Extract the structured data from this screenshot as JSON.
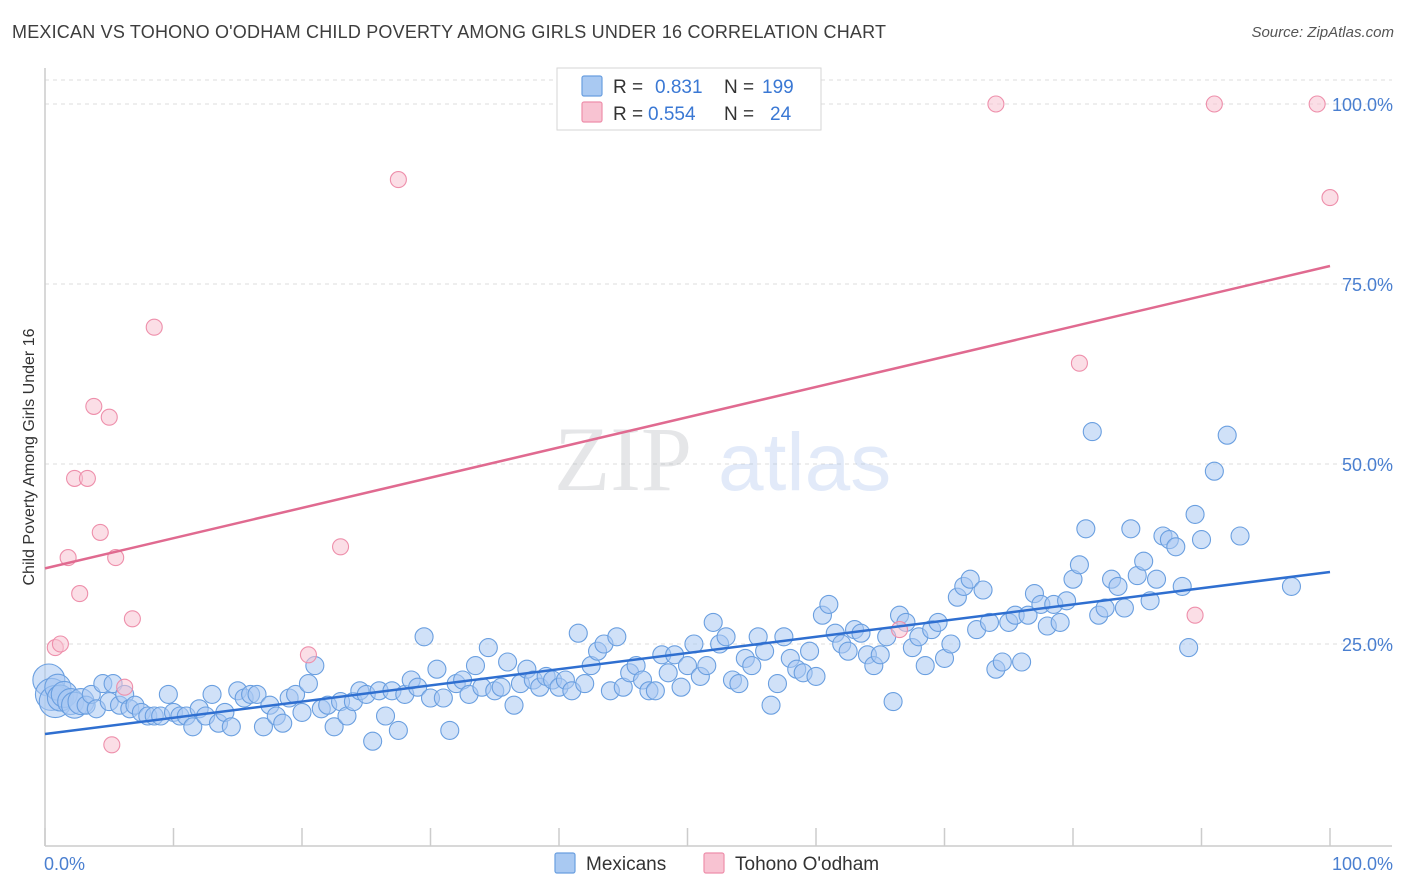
{
  "header": {
    "title": "MEXICAN VS TOHONO O'ODHAM CHILD POVERTY AMONG GIRLS UNDER 16 CORRELATION CHART",
    "source": "Source: ZipAtlas.com"
  },
  "legend": {
    "rows": [
      {
        "r_label": "R =",
        "r_value": "0.831",
        "n_label": "N =",
        "n_value": "199",
        "color": "#9ec3f0"
      },
      {
        "r_label": "R =",
        "r_value": "0.554",
        "n_label": "N =",
        "n_value": "24",
        "color": "#f5b8c8"
      }
    ]
  },
  "watermark": {
    "zip": "ZIP",
    "atlas": "atlas"
  },
  "colors": {
    "blue_fill": "#a9c9f2",
    "blue_stroke": "#6a9fe0",
    "blue_line": "#2f6fd0",
    "pink_fill": "#f8c3d2",
    "pink_stroke": "#ee8fab",
    "pink_line": "#e06a90",
    "grid": "#dddddd",
    "axis": "#cccccc"
  },
  "chart_data": {
    "type": "scatter",
    "title": "MEXICAN VS TOHONO O'ODHAM CHILD POVERTY AMONG GIRLS UNDER 16 CORRELATION CHART",
    "ylabel": "Child Poverty Among Girls Under 16",
    "xlabel": "",
    "xlim": [
      0,
      100
    ],
    "ylim": [
      0,
      105
    ],
    "x_tick_labels": [
      "0.0%",
      "100.0%"
    ],
    "y_ticks": [
      25,
      50,
      75,
      100
    ],
    "y_tick_labels": [
      "25.0%",
      "50.0%",
      "75.0%",
      "100.0%"
    ],
    "grid": "horizontal dashed",
    "legend_placement": "top-center",
    "series": [
      {
        "name": "Mexicans",
        "trend": {
          "x": [
            0,
            100
          ],
          "y": [
            12.5,
            35.0
          ]
        },
        "points": [
          [
            0.3,
            20
          ],
          [
            0.5,
            18
          ],
          [
            0.8,
            17
          ],
          [
            1,
            19
          ],
          [
            1.2,
            17.5
          ],
          [
            1.5,
            18
          ],
          [
            2,
            17
          ],
          [
            2.3,
            16.5
          ],
          [
            2.8,
            17
          ],
          [
            3.2,
            16.5
          ],
          [
            3.6,
            18
          ],
          [
            4,
            16
          ],
          [
            4.5,
            19.5
          ],
          [
            5,
            17
          ],
          [
            5.3,
            19.5
          ],
          [
            5.8,
            16.5
          ],
          [
            6.2,
            18
          ],
          [
            6.6,
            16
          ],
          [
            7,
            16.5
          ],
          [
            7.5,
            15.5
          ],
          [
            8,
            15
          ],
          [
            8.5,
            15
          ],
          [
            9,
            15
          ],
          [
            9.6,
            18
          ],
          [
            10,
            15.5
          ],
          [
            10.5,
            15
          ],
          [
            11,
            15
          ],
          [
            11.5,
            13.5
          ],
          [
            12,
            16
          ],
          [
            12.5,
            15
          ],
          [
            13,
            18
          ],
          [
            13.5,
            14
          ],
          [
            14,
            15.5
          ],
          [
            14.5,
            13.5
          ],
          [
            15,
            18.5
          ],
          [
            15.5,
            17.5
          ],
          [
            16,
            18
          ],
          [
            16.5,
            18
          ],
          [
            17,
            13.5
          ],
          [
            17.5,
            16.5
          ],
          [
            18,
            15
          ],
          [
            18.5,
            14
          ],
          [
            19,
            17.5
          ],
          [
            19.5,
            18
          ],
          [
            20,
            15.5
          ],
          [
            20.5,
            19.5
          ],
          [
            21,
            22
          ],
          [
            21.5,
            16
          ],
          [
            22,
            16.5
          ],
          [
            22.5,
            13.5
          ],
          [
            23,
            17
          ],
          [
            23.5,
            15
          ],
          [
            24,
            17
          ],
          [
            24.5,
            18.5
          ],
          [
            25,
            18
          ],
          [
            25.5,
            11.5
          ],
          [
            26,
            18.5
          ],
          [
            26.5,
            15
          ],
          [
            27,
            18.5
          ],
          [
            27.5,
            13
          ],
          [
            28,
            18
          ],
          [
            28.5,
            20
          ],
          [
            29,
            19
          ],
          [
            29.5,
            26
          ],
          [
            30,
            17.5
          ],
          [
            30.5,
            21.5
          ],
          [
            31,
            17.5
          ],
          [
            31.5,
            13
          ],
          [
            32,
            19.5
          ],
          [
            32.5,
            20
          ],
          [
            33,
            18
          ],
          [
            33.5,
            22
          ],
          [
            34,
            19
          ],
          [
            34.5,
            24.5
          ],
          [
            35,
            18.5
          ],
          [
            35.5,
            19
          ],
          [
            36,
            22.5
          ],
          [
            36.5,
            16.5
          ],
          [
            37,
            19.5
          ],
          [
            37.5,
            21.5
          ],
          [
            38,
            20
          ],
          [
            38.5,
            19
          ],
          [
            39,
            20.5
          ],
          [
            39.5,
            20
          ],
          [
            40,
            19
          ],
          [
            40.5,
            20
          ],
          [
            41,
            18.5
          ],
          [
            41.5,
            26.5
          ],
          [
            42,
            19.5
          ],
          [
            42.5,
            22
          ],
          [
            43,
            24
          ],
          [
            43.5,
            25
          ],
          [
            44,
            18.5
          ],
          [
            44.5,
            26
          ],
          [
            45,
            19
          ],
          [
            45.5,
            21
          ],
          [
            46,
            22
          ],
          [
            46.5,
            20
          ],
          [
            47,
            18.5
          ],
          [
            47.5,
            18.5
          ],
          [
            48,
            23.5
          ],
          [
            48.5,
            21
          ],
          [
            49,
            23.5
          ],
          [
            49.5,
            19
          ],
          [
            50,
            22
          ],
          [
            50.5,
            25
          ],
          [
            51,
            20.5
          ],
          [
            51.5,
            22
          ],
          [
            52,
            28
          ],
          [
            52.5,
            25
          ],
          [
            53,
            26
          ],
          [
            53.5,
            20
          ],
          [
            54,
            19.5
          ],
          [
            54.5,
            23
          ],
          [
            55,
            22
          ],
          [
            55.5,
            26
          ],
          [
            56,
            24
          ],
          [
            56.5,
            16.5
          ],
          [
            57,
            19.5
          ],
          [
            57.5,
            26
          ],
          [
            58,
            23
          ],
          [
            58.5,
            21.5
          ],
          [
            59,
            21
          ],
          [
            59.5,
            24
          ],
          [
            60,
            20.5
          ],
          [
            60.5,
            29
          ],
          [
            61,
            30.5
          ],
          [
            61.5,
            26.5
          ],
          [
            62,
            25
          ],
          [
            62.5,
            24
          ],
          [
            63,
            27
          ],
          [
            63.5,
            26.5
          ],
          [
            64,
            23.5
          ],
          [
            64.5,
            22
          ],
          [
            65,
            23.5
          ],
          [
            65.5,
            26
          ],
          [
            66,
            17
          ],
          [
            66.5,
            29
          ],
          [
            67,
            28
          ],
          [
            67.5,
            24.5
          ],
          [
            68,
            26
          ],
          [
            68.5,
            22
          ],
          [
            69,
            27
          ],
          [
            69.5,
            28
          ],
          [
            70,
            23
          ],
          [
            70.5,
            25
          ],
          [
            71,
            31.5
          ],
          [
            71.5,
            33
          ],
          [
            72,
            34
          ],
          [
            72.5,
            27
          ],
          [
            73,
            32.5
          ],
          [
            73.5,
            28
          ],
          [
            74,
            21.5
          ],
          [
            74.5,
            22.5
          ],
          [
            75,
            28
          ],
          [
            75.5,
            29
          ],
          [
            76,
            22.5
          ],
          [
            76.5,
            29
          ],
          [
            77,
            32
          ],
          [
            77.5,
            30.5
          ],
          [
            78,
            27.5
          ],
          [
            78.5,
            30.5
          ],
          [
            79,
            28
          ],
          [
            79.5,
            31
          ],
          [
            80,
            34
          ],
          [
            80.5,
            36
          ],
          [
            81,
            41
          ],
          [
            81.5,
            54.5
          ],
          [
            82,
            29
          ],
          [
            82.5,
            30
          ],
          [
            83,
            34
          ],
          [
            83.5,
            33
          ],
          [
            84,
            30
          ],
          [
            84.5,
            41
          ],
          [
            85,
            34.5
          ],
          [
            85.5,
            36.5
          ],
          [
            86,
            31
          ],
          [
            86.5,
            34
          ],
          [
            87,
            40
          ],
          [
            87.5,
            39.5
          ],
          [
            88,
            38.5
          ],
          [
            88.5,
            33
          ],
          [
            89,
            24.5
          ],
          [
            89.5,
            43
          ],
          [
            90,
            39.5
          ],
          [
            91,
            49
          ],
          [
            92,
            54
          ],
          [
            93,
            40
          ],
          [
            97,
            33
          ]
        ]
      },
      {
        "name": "Tohono O'odham",
        "trend": {
          "x": [
            0,
            100
          ],
          "y": [
            35.5,
            77.5
          ]
        },
        "points": [
          [
            0.8,
            24.5
          ],
          [
            1.2,
            25
          ],
          [
            1.8,
            37
          ],
          [
            2.3,
            48
          ],
          [
            2.7,
            32
          ],
          [
            3.3,
            48
          ],
          [
            3.8,
            58
          ],
          [
            4.3,
            40.5
          ],
          [
            5,
            56.5
          ],
          [
            5.5,
            37
          ],
          [
            6.2,
            19
          ],
          [
            6.8,
            28.5
          ],
          [
            5.2,
            11
          ],
          [
            8.5,
            69
          ],
          [
            20.5,
            23.5
          ],
          [
            23,
            38.5
          ],
          [
            27.5,
            89.5
          ],
          [
            66.5,
            27
          ],
          [
            74,
            100
          ],
          [
            80.5,
            64
          ],
          [
            89.5,
            29
          ],
          [
            91,
            100
          ],
          [
            100,
            87
          ],
          [
            99,
            100
          ]
        ]
      }
    ]
  },
  "bottom_legend": {
    "items": [
      {
        "label": "Mexicans",
        "color": "#a9c9f2"
      },
      {
        "label": "Tohono O'odham",
        "color": "#f8c3d2"
      }
    ]
  }
}
